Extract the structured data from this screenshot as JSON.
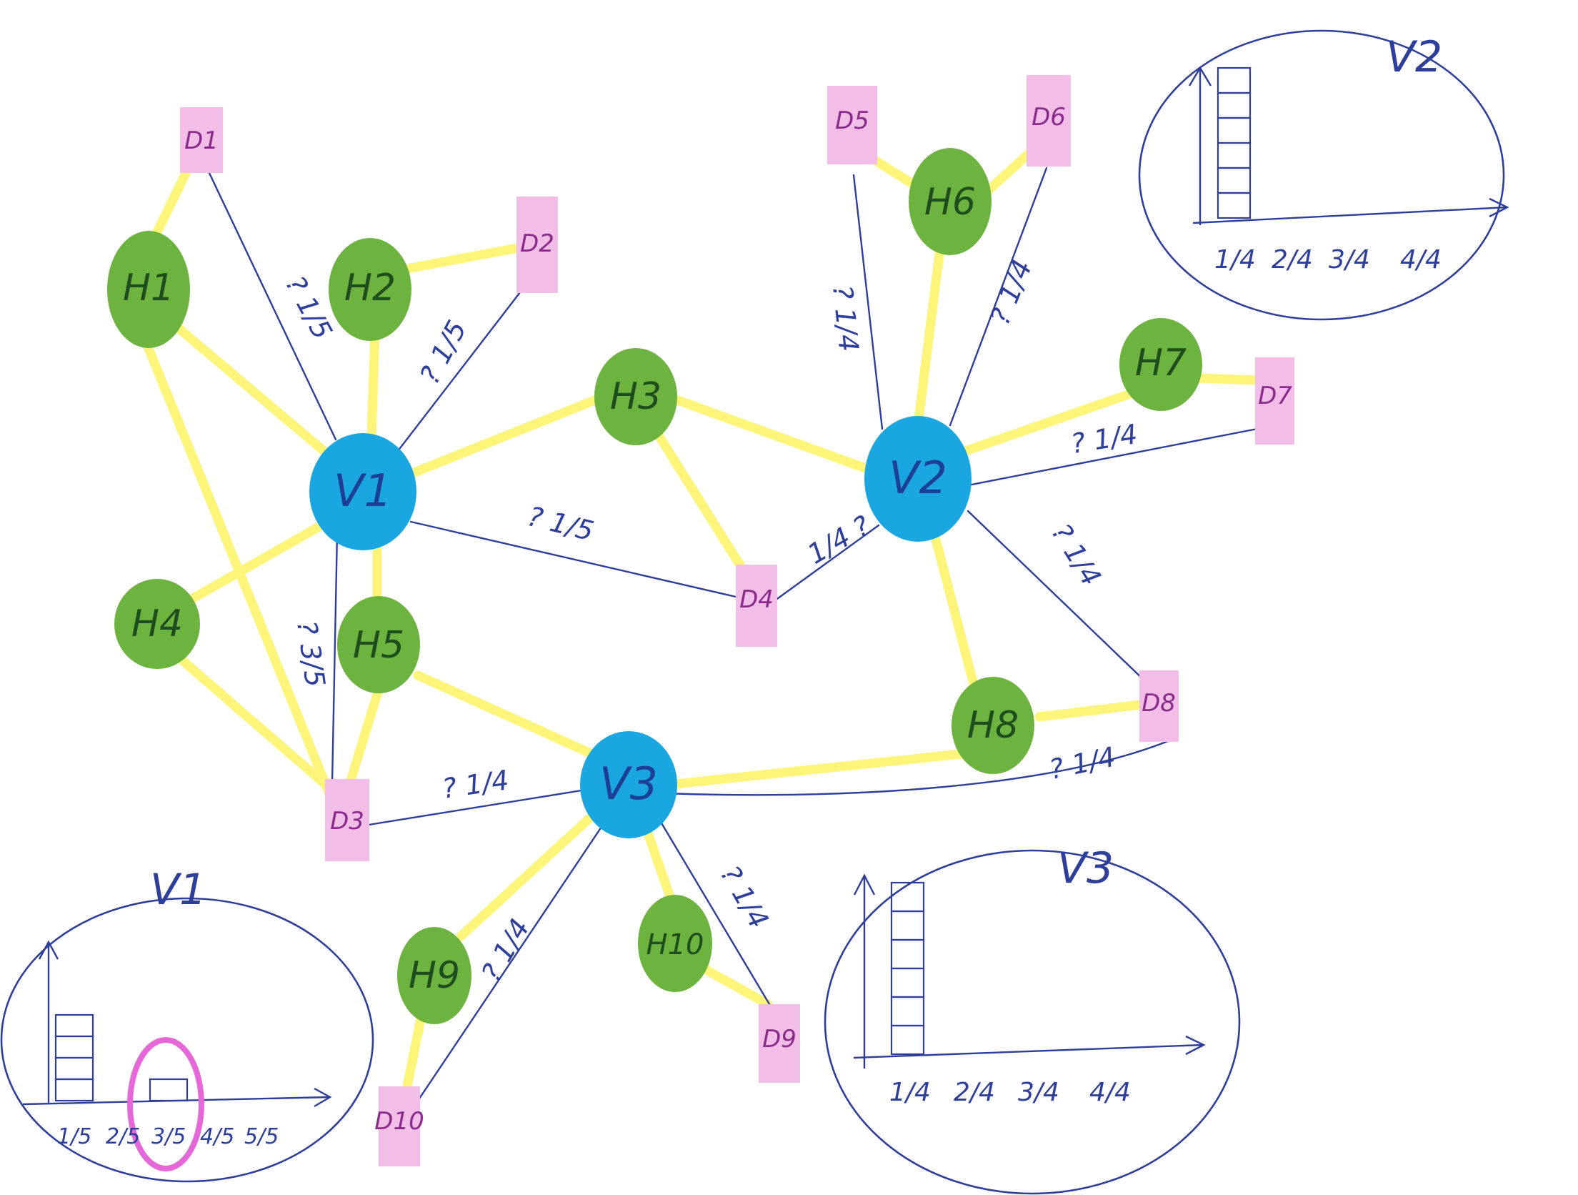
{
  "colors": {
    "hub_fill": "#1aa6e0",
    "helper_fill": "#6db33f",
    "device_fill": "#f2bde6",
    "device_text": "#8a2a8a",
    "ink": "#2d3f9a",
    "highlight": "#fdf47a",
    "circle_mark": "#e667d8"
  },
  "hubs": [
    {
      "id": "V1",
      "label": "V1"
    },
    {
      "id": "V2",
      "label": "V2"
    },
    {
      "id": "V3",
      "label": "V3"
    }
  ],
  "helpers": [
    {
      "id": "H1",
      "label": "H1"
    },
    {
      "id": "H2",
      "label": "H2"
    },
    {
      "id": "H3",
      "label": "H3"
    },
    {
      "id": "H4",
      "label": "H4"
    },
    {
      "id": "H5",
      "label": "H5"
    },
    {
      "id": "H6",
      "label": "H6"
    },
    {
      "id": "H7",
      "label": "H7"
    },
    {
      "id": "H8",
      "label": "H8"
    },
    {
      "id": "H9",
      "label": "H9"
    },
    {
      "id": "H10",
      "label": "H10"
    }
  ],
  "devices": [
    {
      "id": "D1",
      "label": "D1"
    },
    {
      "id": "D2",
      "label": "D2"
    },
    {
      "id": "D3",
      "label": "D3"
    },
    {
      "id": "D4",
      "label": "D4"
    },
    {
      "id": "D5",
      "label": "D5"
    },
    {
      "id": "D6",
      "label": "D6"
    },
    {
      "id": "D7",
      "label": "D7"
    },
    {
      "id": "D8",
      "label": "D8"
    },
    {
      "id": "D9",
      "label": "D9"
    },
    {
      "id": "D10",
      "label": "D10"
    }
  ],
  "edge_labels": {
    "v1_d1": "? 1/5",
    "v1_d2": "? 1/5",
    "v1_d4": "? 1/5",
    "v1_d3": "? 3/5",
    "v2_d4": "1/4 ?",
    "v2_d5": "? 1/4",
    "v2_d6": "? 1/4",
    "v2_d7": "? 1/4",
    "v2_d8": "? 1/4",
    "v3_d3": "? 1/4",
    "v3_d8": "? 1/4",
    "v3_d9": "? 1/4",
    "v3_d10": "? 1/4"
  },
  "insets": {
    "v1": {
      "title": "V1",
      "ticks": [
        "1/5",
        "2/5",
        "3/5",
        "4/5",
        "5/5"
      ]
    },
    "v2": {
      "title": "V2",
      "ticks": [
        "1/4",
        "2/4",
        "3/4",
        "4/4"
      ]
    },
    "v3": {
      "title": "V3",
      "ticks": [
        "1/4",
        "2/4",
        "3/4",
        "4/4"
      ]
    }
  },
  "chart_data": [
    {
      "type": "bar",
      "title": "V1",
      "categories": [
        "1/5",
        "2/5",
        "3/5",
        "4/5",
        "5/5"
      ],
      "values": [
        4,
        0,
        1,
        0,
        0
      ],
      "highlighted_category": "3/5"
    },
    {
      "type": "bar",
      "title": "V2",
      "categories": [
        "1/4",
        "2/4",
        "3/4",
        "4/4"
      ],
      "values": [
        6,
        0,
        0,
        0
      ]
    },
    {
      "type": "bar",
      "title": "V3",
      "categories": [
        "1/4",
        "2/4",
        "3/4",
        "4/4"
      ],
      "values": [
        6,
        0,
        0,
        0
      ]
    }
  ]
}
